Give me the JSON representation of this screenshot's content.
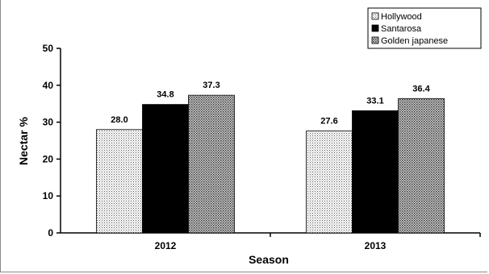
{
  "chart_data": {
    "type": "bar",
    "title": "",
    "xlabel": "Season",
    "ylabel": "Nectar %",
    "categories": [
      "2012",
      "2013"
    ],
    "ylim": [
      0,
      50
    ],
    "yticks": [
      0,
      10,
      20,
      30,
      40,
      50
    ],
    "grid": false,
    "legend_position": "top-right",
    "series": [
      {
        "name": "Hollywood",
        "values": [
          28.0,
          27.6
        ],
        "value_labels": [
          "28.0",
          "27.6"
        ],
        "pattern": "dotted",
        "color": "#ffffff"
      },
      {
        "name": "Santarosa",
        "values": [
          34.8,
          33.1
        ],
        "value_labels": [
          "34.8",
          "33.1"
        ],
        "pattern": "solid",
        "color": "#000000"
      },
      {
        "name": "Golden japanese",
        "values": [
          37.3,
          36.4
        ],
        "value_labels": [
          "37.3",
          "36.4"
        ],
        "pattern": "crosshatch",
        "color": "#bdbdbd"
      }
    ]
  }
}
